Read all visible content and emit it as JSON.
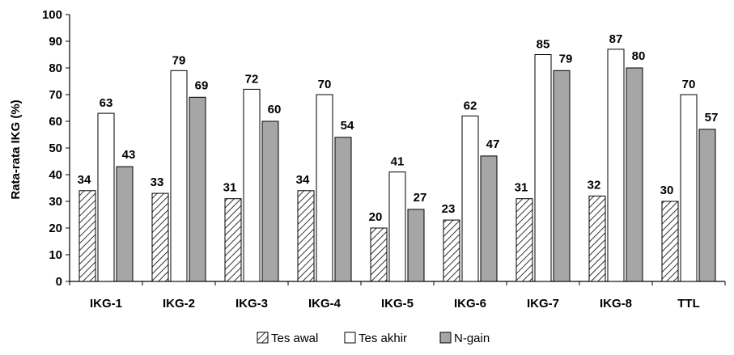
{
  "chart_data": {
    "type": "bar",
    "title": "",
    "xlabel": "",
    "ylabel": "Rata-rata IKG (%)",
    "ylim": [
      0,
      100
    ],
    "yticks": [
      0,
      10,
      20,
      30,
      40,
      50,
      60,
      70,
      80,
      90,
      100
    ],
    "grid": false,
    "legend_position": "bottom",
    "categories": [
      "IKG-1",
      "IKG-2",
      "IKG-3",
      "IKG-4",
      "IKG-5",
      "IKG-6",
      "IKG-7",
      "IKG-8",
      "TTL"
    ],
    "series": [
      {
        "name": "Tes awal",
        "style": "hatched",
        "color": "#ffffff",
        "values": [
          34,
          33,
          31,
          34,
          20,
          23,
          31,
          32,
          30
        ]
      },
      {
        "name": "Tes akhir",
        "style": "solid",
        "color": "#ffffff",
        "values": [
          63,
          79,
          72,
          70,
          41,
          62,
          85,
          87,
          70
        ]
      },
      {
        "name": "N-gain",
        "style": "solid",
        "color": "#a6a6a6",
        "values": [
          43,
          69,
          60,
          54,
          27,
          47,
          79,
          80,
          57
        ]
      }
    ]
  }
}
